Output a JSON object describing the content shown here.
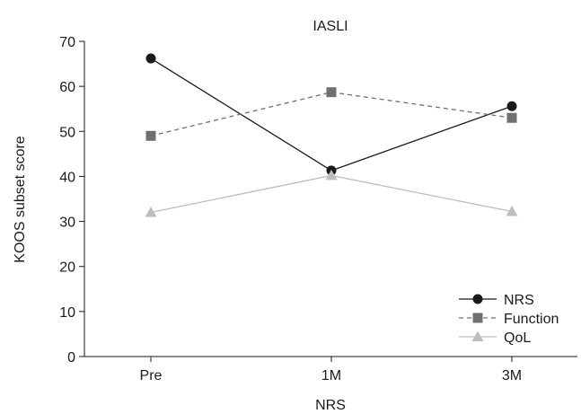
{
  "chart_data": {
    "type": "line",
    "title": "IASLI",
    "xlabel": "NRS",
    "ylabel": "KOOS subset score",
    "categories": [
      "Pre",
      "1M",
      "3M"
    ],
    "ylim": [
      0,
      70
    ],
    "yticks": [
      0,
      10,
      20,
      30,
      40,
      50,
      60,
      70
    ],
    "grid": false,
    "legend_position": "bottom-right",
    "series": [
      {
        "name": "NRS",
        "values": [
          66.2,
          41.3,
          55.6
        ],
        "color": "#1a1a1a",
        "marker": "circle",
        "line_style": "solid"
      },
      {
        "name": "Function",
        "values": [
          49.0,
          58.7,
          53.0
        ],
        "color": "#707070",
        "marker": "square",
        "line_style": "dashed"
      },
      {
        "name": "QoL",
        "values": [
          32.0,
          40.2,
          32.2
        ],
        "color": "#bdbdbd",
        "marker": "triangle",
        "line_style": "solid"
      }
    ]
  }
}
